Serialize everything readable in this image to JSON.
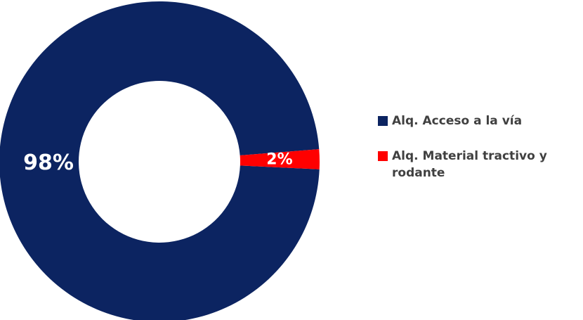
{
  "chart_data": {
    "type": "donut",
    "categories": [
      "Alq. Acceso a la vía",
      "Alq. Material tractivo y rodante"
    ],
    "values": [
      98,
      2
    ],
    "value_labels": [
      "98%",
      "2%"
    ],
    "colors": [
      "#0c2461",
      "#ff0000"
    ],
    "start_angle": 92.7,
    "legend": "right"
  }
}
